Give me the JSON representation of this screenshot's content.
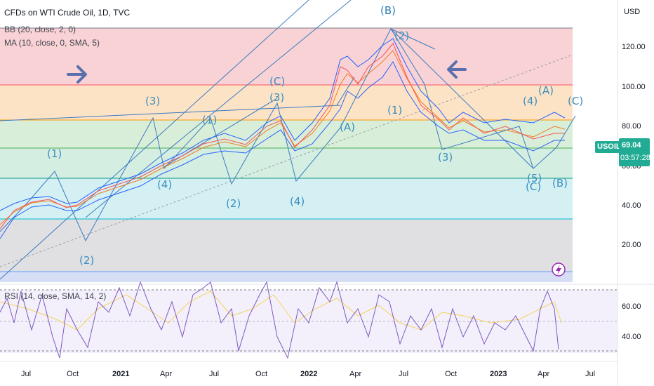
{
  "legend": {
    "title": "CFDs on WTI Crude Oil, 1D, TVC",
    "bb": "BB (20, close, 2, 0)",
    "ma": "MA (10, close, 0, SMA, 5)",
    "rsi": "RSI (14, close, SMA, 14, 2)"
  },
  "price_axis": {
    "currency": "USD",
    "ticks": [
      "120.00",
      "100.00",
      "80.00",
      "60.00",
      "40.00",
      "20.00"
    ]
  },
  "rsi_axis": {
    "ticks": [
      "60.00",
      "40.00"
    ]
  },
  "time_axis": {
    "ticks": [
      "Jul",
      "Oct",
      "2021",
      "Apr",
      "Jul",
      "Oct",
      "2022",
      "Apr",
      "Jul",
      "Oct",
      "2023",
      "Apr",
      "Jul"
    ]
  },
  "symbol_tag": {
    "symbol": "USOIL",
    "price": "69.04",
    "countdown": "03:57:28",
    "color": "#22ab94"
  },
  "fib_zones": [
    {
      "color": "#f8d2d5"
    },
    {
      "color": "#fde3c6"
    },
    {
      "color": "#d9eed8"
    },
    {
      "color": "#d0efe9"
    },
    {
      "color": "#d4f0f3"
    },
    {
      "color": "#e0e0e2"
    },
    {
      "color": "#d6def5"
    }
  ],
  "wave_labels": [
    "(1)",
    "(2)",
    "(3)",
    "(4)",
    "(1)",
    "(2)",
    "(3)",
    "(C)",
    "(4)",
    "(A)",
    "(B)",
    "(2)",
    "(1)",
    "(3)",
    "(4)",
    "(5)",
    "(A)",
    "(C)",
    "(B)",
    "(C)"
  ],
  "icons": {
    "right_arrow": "arrow-right-icon",
    "left_arrow": "arrow-left-icon",
    "alert": "lightning-alert-icon"
  },
  "colors": {
    "wave_line": "#3a7cc0",
    "bollinger": "#2962ff",
    "ma": "#f7525f",
    "rsi": "#7e57c2",
    "rsi_ma": "#f2d45c"
  }
}
